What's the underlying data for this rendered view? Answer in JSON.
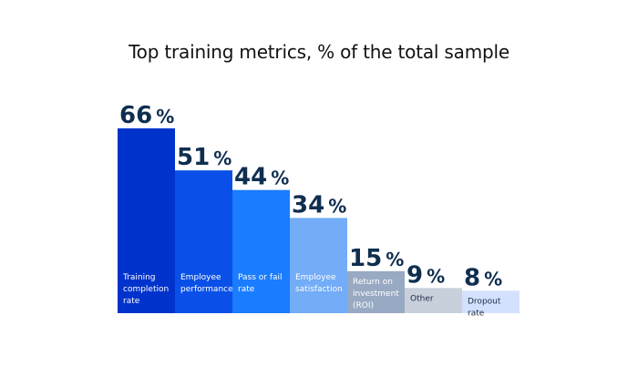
{
  "chart_data": {
    "type": "bar",
    "title": "Top training metrics, % of the total sample",
    "categories": [
      "Training completion rate",
      "Employee performance",
      "Pass or fail rate",
      "Employee satisfaction",
      "Return on investment (ROI)",
      "Other",
      "Dropout rate"
    ],
    "category_lines": [
      [
        "Training",
        "completion",
        "rate"
      ],
      [
        "Employee",
        "performance"
      ],
      [
        "Pass or fail",
        "rate"
      ],
      [
        "Employee",
        "satisfaction"
      ],
      [
        "Return on",
        "investment",
        "(ROI)"
      ],
      [
        "Other"
      ],
      [
        "Dropout",
        "rate"
      ]
    ],
    "values": [
      66,
      51,
      44,
      34,
      15,
      9,
      8
    ],
    "value_unit": "%",
    "bar_colors": [
      "#0033cc",
      "#0a50e8",
      "#1a7cff",
      "#73acf7",
      "#98a9c3",
      "#c8d0dc",
      "#d3e1fd"
    ],
    "label_colors": [
      "#ffffff",
      "#ffffff",
      "#ffffff",
      "#ffffff",
      "#ffffff",
      "#1d2b47",
      "#1d2b47"
    ],
    "value_label_color": "#0f2e50",
    "ylim": [
      0,
      66
    ],
    "grid": false,
    "legend": "none"
  }
}
